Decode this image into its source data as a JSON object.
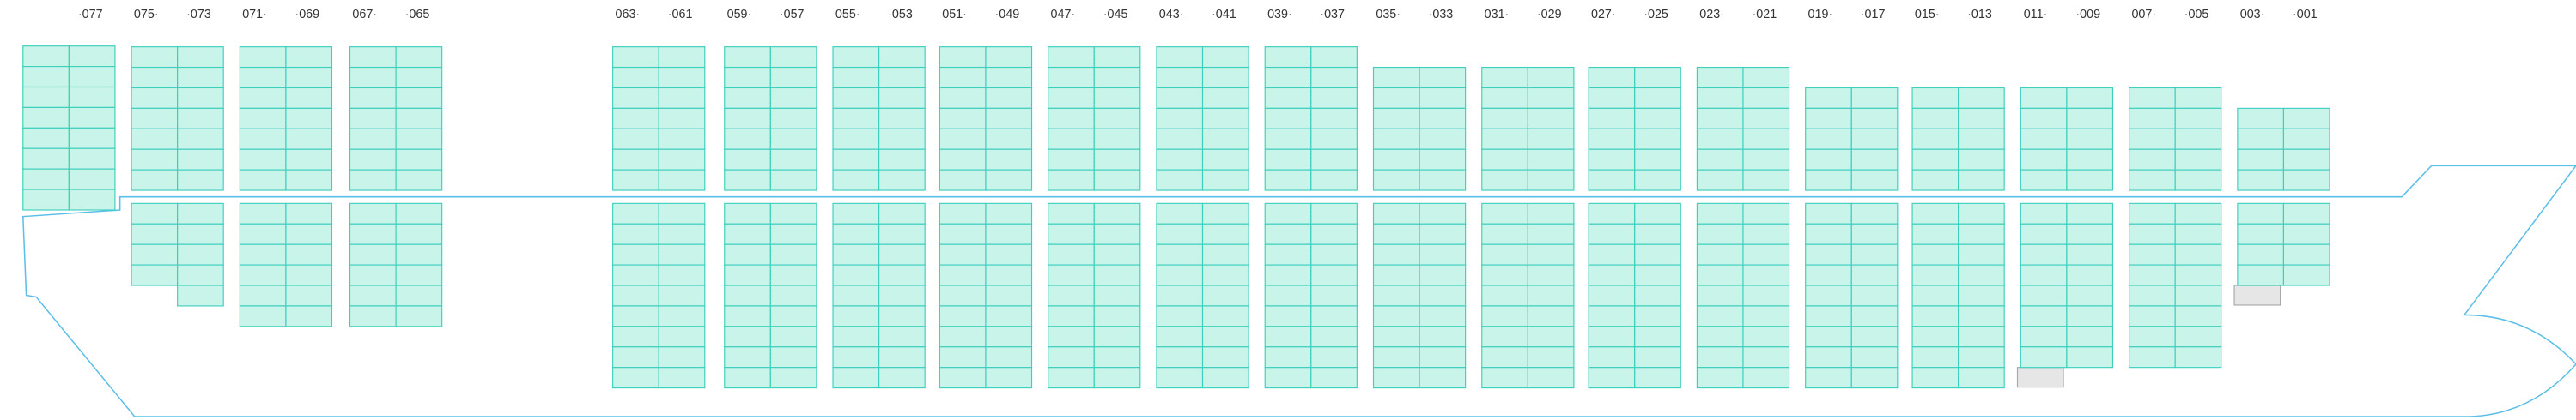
{
  "bays": [
    {
      "labels": [
        "·077"
      ]
    },
    {
      "labels": [
        "075·",
        "·073"
      ]
    },
    {
      "labels": [
        "071·",
        "·069"
      ]
    },
    {
      "labels": [
        "067·",
        "·065"
      ]
    },
    {
      "labels": [
        "063·",
        "·061"
      ]
    },
    {
      "labels": [
        "059·",
        "·057"
      ]
    },
    {
      "labels": [
        "055·",
        "·053"
      ]
    },
    {
      "labels": [
        "051·",
        "·049"
      ]
    },
    {
      "labels": [
        "047·",
        "·045"
      ]
    },
    {
      "labels": [
        "043·",
        "·041"
      ]
    },
    {
      "labels": [
        "039·",
        "·037"
      ]
    },
    {
      "labels": [
        "035·",
        "·033"
      ]
    },
    {
      "labels": [
        "031·",
        "·029"
      ]
    },
    {
      "labels": [
        "027·",
        "·025"
      ]
    },
    {
      "labels": [
        "023·",
        "·021"
      ]
    },
    {
      "labels": [
        "019·",
        "·017"
      ]
    },
    {
      "labels": [
        "015·",
        "·013"
      ]
    },
    {
      "labels": [
        "011·",
        "·009"
      ]
    },
    {
      "labels": [
        "007·",
        "·005"
      ]
    },
    {
      "labels": [
        "003·",
        "·001"
      ]
    }
  ]
}
